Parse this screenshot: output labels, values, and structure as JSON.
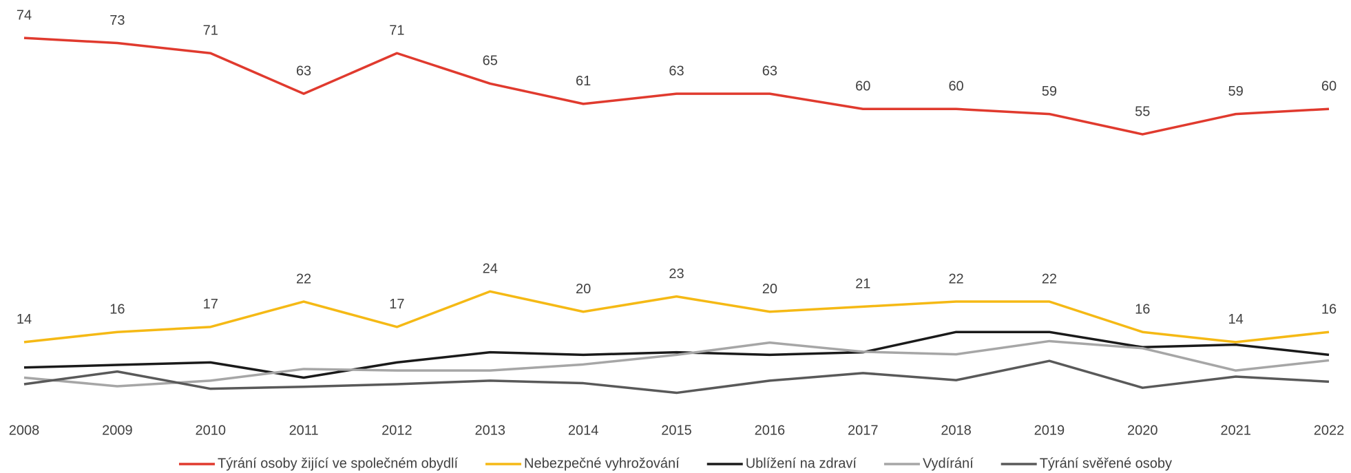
{
  "chart_data": {
    "type": "line",
    "categories": [
      "2008",
      "2009",
      "2010",
      "2011",
      "2012",
      "2013",
      "2014",
      "2015",
      "2016",
      "2017",
      "2018",
      "2019",
      "2020",
      "2021",
      "2022"
    ],
    "ylim": [
      0,
      80
    ],
    "series": [
      {
        "name": "Týrání osoby žijící ve společném obydlí",
        "color": "#e03a2e",
        "data_labels": true,
        "values": [
          74,
          73,
          71,
          63,
          71,
          65,
          61,
          63,
          63,
          60,
          60,
          59,
          55,
          59,
          60
        ]
      },
      {
        "name": "Nebezpečné vyhrožování",
        "color": "#f5b915",
        "data_labels": true,
        "values": [
          14,
          16,
          17,
          22,
          17,
          24,
          20,
          23,
          20,
          21,
          22,
          22,
          16,
          14,
          16
        ]
      },
      {
        "name": "Ublížení na zdraví",
        "color": "#1a1a1a",
        "data_labels": false,
        "values": [
          9,
          9.5,
          10,
          7,
          10,
          12,
          11.5,
          12,
          11.5,
          12,
          16,
          16,
          13,
          13.5,
          11.5
        ]
      },
      {
        "name": "Vydírání",
        "color": "#a6a6a6",
        "data_labels": false,
        "values": [
          7,
          5.3,
          6.4,
          8.7,
          8.4,
          8.4,
          9.6,
          11.5,
          13.9,
          12.1,
          11.6,
          14.2,
          12.8,
          8.4,
          10.4
        ]
      },
      {
        "name": "Týrání svěřené osoby",
        "color": "#595959",
        "data_labels": false,
        "values": [
          5.7,
          8.2,
          4.8,
          5.2,
          5.7,
          6.4,
          5.9,
          4,
          6.4,
          7.9,
          6.5,
          10.3,
          5,
          7.2,
          6.2
        ]
      }
    ]
  }
}
